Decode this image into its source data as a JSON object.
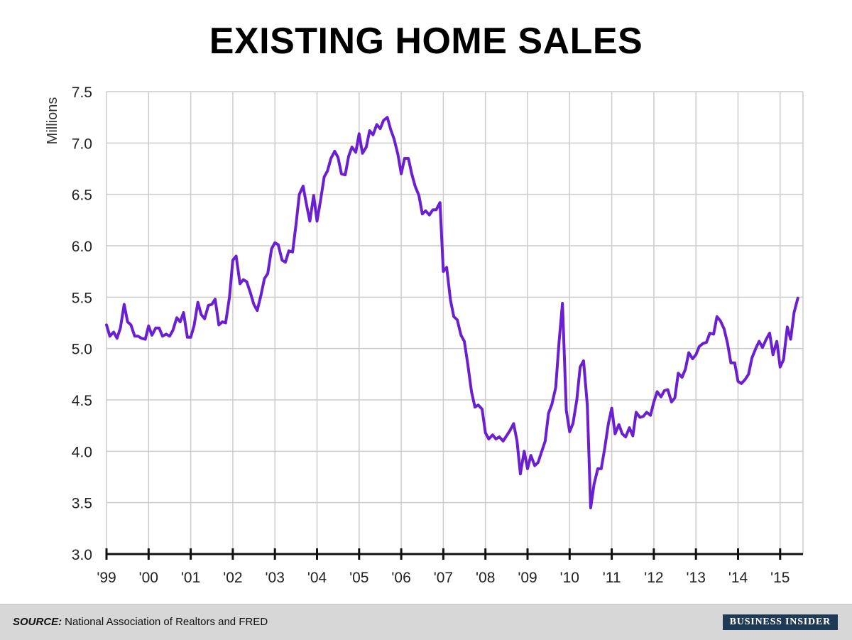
{
  "title": "EXISTING HOME SALES",
  "footer": {
    "source_label": "SOURCE:",
    "source_text": "National Association of Realtors and FRED",
    "brand": "BUSINESS INSIDER"
  },
  "colors": {
    "line": "#6a1fd0",
    "grid": "#cccccc",
    "axis": "#111111",
    "footer_bg": "#d7d7d7",
    "brand_bg": "#1f3a57"
  },
  "chart_data": {
    "type": "line",
    "title": "EXISTING HOME SALES",
    "ylabel": "Millions",
    "xlabel": "",
    "ylim": [
      3.0,
      7.5
    ],
    "yticks": [
      "3.0",
      "3.5",
      "4.0",
      "4.5",
      "5.0",
      "5.5",
      "6.0",
      "6.5",
      "7.0",
      "7.5"
    ],
    "xlim": [
      1999.0,
      2015.45
    ],
    "xticks": [
      {
        "x": 1999,
        "label": "'99"
      },
      {
        "x": 2000,
        "label": "'00"
      },
      {
        "x": 2001,
        "label": "'01"
      },
      {
        "x": 2002,
        "label": "'02"
      },
      {
        "x": 2003,
        "label": "'03"
      },
      {
        "x": 2004,
        "label": "'04"
      },
      {
        "x": 2005,
        "label": "'05"
      },
      {
        "x": 2006,
        "label": "'06"
      },
      {
        "x": 2007,
        "label": "'07"
      },
      {
        "x": 2008,
        "label": "'08"
      },
      {
        "x": 2009,
        "label": "'09"
      },
      {
        "x": 2010,
        "label": "'10"
      },
      {
        "x": 2011,
        "label": "'11"
      },
      {
        "x": 2012,
        "label": "'12"
      },
      {
        "x": 2013,
        "label": "'13"
      },
      {
        "x": 2014,
        "label": "'14"
      },
      {
        "x": 2015,
        "label": "'15"
      }
    ],
    "grid": true,
    "series": [
      {
        "points": [
          [
            1999.0,
            5.23
          ],
          [
            1999.08,
            5.12
          ],
          [
            1999.17,
            5.16
          ],
          [
            1999.25,
            5.1
          ],
          [
            1999.33,
            5.2
          ],
          [
            1999.42,
            5.43
          ],
          [
            1999.5,
            5.26
          ],
          [
            1999.58,
            5.23
          ],
          [
            1999.67,
            5.12
          ],
          [
            1999.75,
            5.12
          ],
          [
            1999.83,
            5.1
          ],
          [
            1999.92,
            5.09
          ],
          [
            2000.0,
            5.22
          ],
          [
            2000.08,
            5.13
          ],
          [
            2000.17,
            5.2
          ],
          [
            2000.25,
            5.2
          ],
          [
            2000.33,
            5.12
          ],
          [
            2000.42,
            5.14
          ],
          [
            2000.5,
            5.12
          ],
          [
            2000.58,
            5.18
          ],
          [
            2000.67,
            5.3
          ],
          [
            2000.75,
            5.26
          ],
          [
            2000.83,
            5.35
          ],
          [
            2000.92,
            5.11
          ],
          [
            2001.0,
            5.11
          ],
          [
            2001.08,
            5.22
          ],
          [
            2001.17,
            5.45
          ],
          [
            2001.25,
            5.33
          ],
          [
            2001.33,
            5.29
          ],
          [
            2001.42,
            5.42
          ],
          [
            2001.5,
            5.43
          ],
          [
            2001.58,
            5.48
          ],
          [
            2001.67,
            5.23
          ],
          [
            2001.75,
            5.26
          ],
          [
            2001.83,
            5.25
          ],
          [
            2001.92,
            5.5
          ],
          [
            2002.0,
            5.86
          ],
          [
            2002.08,
            5.9
          ],
          [
            2002.17,
            5.63
          ],
          [
            2002.25,
            5.67
          ],
          [
            2002.33,
            5.65
          ],
          [
            2002.42,
            5.54
          ],
          [
            2002.5,
            5.43
          ],
          [
            2002.58,
            5.37
          ],
          [
            2002.67,
            5.52
          ],
          [
            2002.75,
            5.68
          ],
          [
            2002.83,
            5.73
          ],
          [
            2002.92,
            5.97
          ],
          [
            2003.0,
            6.03
          ],
          [
            2003.08,
            6.01
          ],
          [
            2003.17,
            5.86
          ],
          [
            2003.25,
            5.84
          ],
          [
            2003.33,
            5.95
          ],
          [
            2003.42,
            5.94
          ],
          [
            2003.5,
            6.2
          ],
          [
            2003.58,
            6.5
          ],
          [
            2003.67,
            6.58
          ],
          [
            2003.75,
            6.4
          ],
          [
            2003.83,
            6.24
          ],
          [
            2003.92,
            6.49
          ],
          [
            2004.0,
            6.24
          ],
          [
            2004.08,
            6.43
          ],
          [
            2004.17,
            6.67
          ],
          [
            2004.25,
            6.73
          ],
          [
            2004.33,
            6.85
          ],
          [
            2004.42,
            6.92
          ],
          [
            2004.5,
            6.86
          ],
          [
            2004.58,
            6.7
          ],
          [
            2004.67,
            6.69
          ],
          [
            2004.75,
            6.87
          ],
          [
            2004.83,
            6.96
          ],
          [
            2004.92,
            6.91
          ],
          [
            2005.0,
            7.09
          ],
          [
            2005.08,
            6.9
          ],
          [
            2005.17,
            6.96
          ],
          [
            2005.25,
            7.12
          ],
          [
            2005.33,
            7.08
          ],
          [
            2005.42,
            7.18
          ],
          [
            2005.5,
            7.14
          ],
          [
            2005.58,
            7.22
          ],
          [
            2005.67,
            7.25
          ],
          [
            2005.75,
            7.13
          ],
          [
            2005.83,
            7.04
          ],
          [
            2005.92,
            6.89
          ],
          [
            2006.0,
            6.7
          ],
          [
            2006.08,
            6.85
          ],
          [
            2006.17,
            6.85
          ],
          [
            2006.25,
            6.7
          ],
          [
            2006.33,
            6.58
          ],
          [
            2006.42,
            6.49
          ],
          [
            2006.5,
            6.31
          ],
          [
            2006.58,
            6.34
          ],
          [
            2006.67,
            6.3
          ],
          [
            2006.75,
            6.35
          ],
          [
            2006.83,
            6.35
          ],
          [
            2006.92,
            6.42
          ],
          [
            2007.0,
            5.75
          ],
          [
            2007.08,
            5.79
          ],
          [
            2007.17,
            5.47
          ],
          [
            2007.25,
            5.31
          ],
          [
            2007.33,
            5.28
          ],
          [
            2007.42,
            5.13
          ],
          [
            2007.5,
            5.07
          ],
          [
            2007.58,
            4.85
          ],
          [
            2007.67,
            4.58
          ],
          [
            2007.75,
            4.43
          ],
          [
            2007.83,
            4.45
          ],
          [
            2007.92,
            4.41
          ],
          [
            2008.0,
            4.18
          ],
          [
            2008.08,
            4.12
          ],
          [
            2008.17,
            4.16
          ],
          [
            2008.25,
            4.12
          ],
          [
            2008.33,
            4.14
          ],
          [
            2008.42,
            4.1
          ],
          [
            2008.5,
            4.15
          ],
          [
            2008.58,
            4.2
          ],
          [
            2008.67,
            4.27
          ],
          [
            2008.75,
            4.1
          ],
          [
            2008.83,
            3.78
          ],
          [
            2008.92,
            4.0
          ],
          [
            2009.0,
            3.83
          ],
          [
            2009.08,
            3.96
          ],
          [
            2009.17,
            3.86
          ],
          [
            2009.25,
            3.89
          ],
          [
            2009.33,
            3.99
          ],
          [
            2009.42,
            4.1
          ],
          [
            2009.5,
            4.37
          ],
          [
            2009.58,
            4.46
          ],
          [
            2009.67,
            4.62
          ],
          [
            2009.75,
            5.07
          ],
          [
            2009.83,
            5.44
          ],
          [
            2009.92,
            4.4
          ],
          [
            2010.0,
            4.19
          ],
          [
            2010.08,
            4.27
          ],
          [
            2010.17,
            4.5
          ],
          [
            2010.25,
            4.82
          ],
          [
            2010.33,
            4.88
          ],
          [
            2010.42,
            4.45
          ],
          [
            2010.5,
            3.45
          ],
          [
            2010.58,
            3.68
          ],
          [
            2010.67,
            3.83
          ],
          [
            2010.75,
            3.83
          ],
          [
            2010.83,
            4.02
          ],
          [
            2010.92,
            4.27
          ],
          [
            2011.0,
            4.42
          ],
          [
            2011.08,
            4.17
          ],
          [
            2011.17,
            4.26
          ],
          [
            2011.25,
            4.17
          ],
          [
            2011.33,
            4.14
          ],
          [
            2011.42,
            4.23
          ],
          [
            2011.5,
            4.15
          ],
          [
            2011.58,
            4.38
          ],
          [
            2011.67,
            4.33
          ],
          [
            2011.75,
            4.34
          ],
          [
            2011.83,
            4.38
          ],
          [
            2011.92,
            4.35
          ],
          [
            2012.0,
            4.48
          ],
          [
            2012.08,
            4.58
          ],
          [
            2012.17,
            4.53
          ],
          [
            2012.25,
            4.59
          ],
          [
            2012.33,
            4.6
          ],
          [
            2012.42,
            4.48
          ],
          [
            2012.5,
            4.52
          ],
          [
            2012.58,
            4.76
          ],
          [
            2012.67,
            4.72
          ],
          [
            2012.75,
            4.8
          ],
          [
            2012.83,
            4.96
          ],
          [
            2012.92,
            4.9
          ],
          [
            2013.0,
            4.94
          ],
          [
            2013.08,
            5.02
          ],
          [
            2013.17,
            5.05
          ],
          [
            2013.25,
            5.06
          ],
          [
            2013.33,
            5.15
          ],
          [
            2013.42,
            5.14
          ],
          [
            2013.5,
            5.31
          ],
          [
            2013.58,
            5.27
          ],
          [
            2013.67,
            5.19
          ],
          [
            2013.75,
            5.05
          ],
          [
            2013.83,
            4.86
          ],
          [
            2013.92,
            4.86
          ],
          [
            2014.0,
            4.68
          ],
          [
            2014.08,
            4.66
          ],
          [
            2014.17,
            4.7
          ],
          [
            2014.25,
            4.75
          ],
          [
            2014.33,
            4.91
          ],
          [
            2014.42,
            5.0
          ],
          [
            2014.5,
            5.07
          ],
          [
            2014.58,
            5.01
          ],
          [
            2014.67,
            5.09
          ],
          [
            2014.75,
            5.15
          ],
          [
            2014.83,
            4.94
          ],
          [
            2014.92,
            5.07
          ],
          [
            2015.0,
            4.82
          ],
          [
            2015.08,
            4.89
          ],
          [
            2015.17,
            5.21
          ],
          [
            2015.25,
            5.09
          ],
          [
            2015.33,
            5.35
          ],
          [
            2015.42,
            5.49
          ]
        ]
      }
    ]
  }
}
